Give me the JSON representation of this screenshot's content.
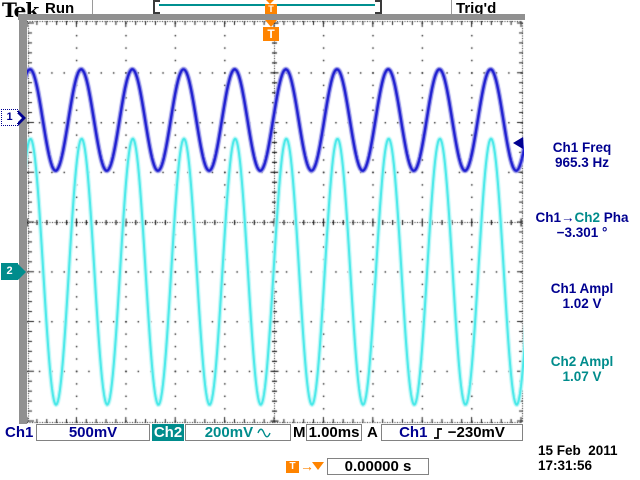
{
  "colors": {
    "navy_text": "#000090",
    "teal_text": "#008c8c",
    "orange": "#ff8400",
    "bezel_gray": "#909090",
    "ch1_wave": "#1818cf",
    "ch2_wave": "#40e8e8"
  },
  "header": {
    "logo": "Tek",
    "acq_state": "Run",
    "trig_status": "Trig'd"
  },
  "trigger_marker_label": "T",
  "channel_markers": {
    "ch1": "1",
    "ch2": "2"
  },
  "readouts": {
    "freq": {
      "label": "Ch1 Freq",
      "value": "965.3 Hz"
    },
    "phase": {
      "label_src": "Ch1",
      "arrow": "→",
      "label_dst": "Ch2",
      "label_meas": " Pha",
      "value": "−3.301 °"
    },
    "ch1_ampl": {
      "label": "Ch1 Ampl",
      "value": "1.02 V"
    },
    "ch2_ampl": {
      "label": "Ch2 Ampl",
      "value": "1.07 V"
    }
  },
  "status_bar": {
    "ch1_label": "Ch1",
    "ch1_scale": "500mV",
    "ch2_label": "Ch2",
    "ch2_scale": "200mV",
    "time_label": "M",
    "time_scale": "1.00ms",
    "trig_label": "A",
    "trig_source": "Ch1",
    "trig_level": "−230mV"
  },
  "horizontal_readout": {
    "arrow": "→",
    "value": "0.00000 s"
  },
  "datetime": {
    "date": "15 Feb  2011",
    "time": "17:31:56"
  },
  "chart_data": {
    "type": "line",
    "title": "Oscilloscope display: Ch1 and Ch2 sine waves, ~965.3 Hz, nearly in phase (−3.301°)",
    "x_axis": {
      "unit": "s",
      "seconds_per_div": 0.001,
      "divisions": 10,
      "label": "M 1.00ms"
    },
    "y_axis": {
      "divisions": 8
    },
    "trigger": {
      "source": "Ch1",
      "level_v": -0.23,
      "slope": "rising",
      "horizontal_pos_s": 0.0
    },
    "series": [
      {
        "name": "Ch1",
        "color": "#1818cf",
        "halo": "#a0a0e8",
        "volts_per_div": 0.5,
        "amplitude_vpp": 1.02,
        "frequency_hz": 965.3,
        "phase_deg": 0,
        "position_div": 2.05,
        "width": 2.4
      },
      {
        "name": "Ch2",
        "color": "#40e8e8",
        "halo": "#c4f8f8",
        "volts_per_div": 0.2,
        "amplitude_vpp": 1.07,
        "frequency_hz": 965.3,
        "phase_deg": -3.301,
        "position_div": -1.0,
        "width": 2.0
      }
    ]
  }
}
